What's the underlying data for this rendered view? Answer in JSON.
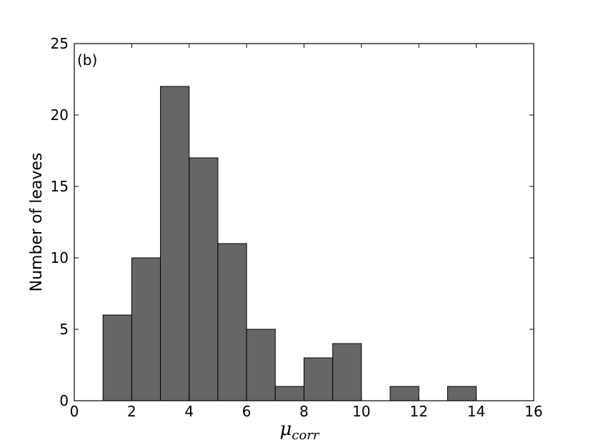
{
  "chart_data": {
    "type": "bar",
    "panel_label": "(b)",
    "ylabel": "Number of leaves",
    "xlabel": {
      "symbol": "μ",
      "subscript": "corr"
    },
    "xlim": [
      0,
      16
    ],
    "ylim": [
      0,
      25
    ],
    "xticks": [
      0,
      2,
      4,
      6,
      8,
      10,
      12,
      14,
      16
    ],
    "yticks": [
      0,
      5,
      10,
      15,
      20,
      25
    ],
    "bin_width": 1,
    "bins": [
      {
        "start": 1,
        "value": 6
      },
      {
        "start": 2,
        "value": 10
      },
      {
        "start": 3,
        "value": 22
      },
      {
        "start": 4,
        "value": 17
      },
      {
        "start": 5,
        "value": 11
      },
      {
        "start": 6,
        "value": 5
      },
      {
        "start": 7,
        "value": 1
      },
      {
        "start": 8,
        "value": 3
      },
      {
        "start": 9,
        "value": 4
      },
      {
        "start": 10,
        "value": 0
      },
      {
        "start": 11,
        "value": 1
      },
      {
        "start": 12,
        "value": 0
      },
      {
        "start": 13,
        "value": 1
      }
    ],
    "bar_color": "#666666",
    "edge_color": "#000000"
  }
}
